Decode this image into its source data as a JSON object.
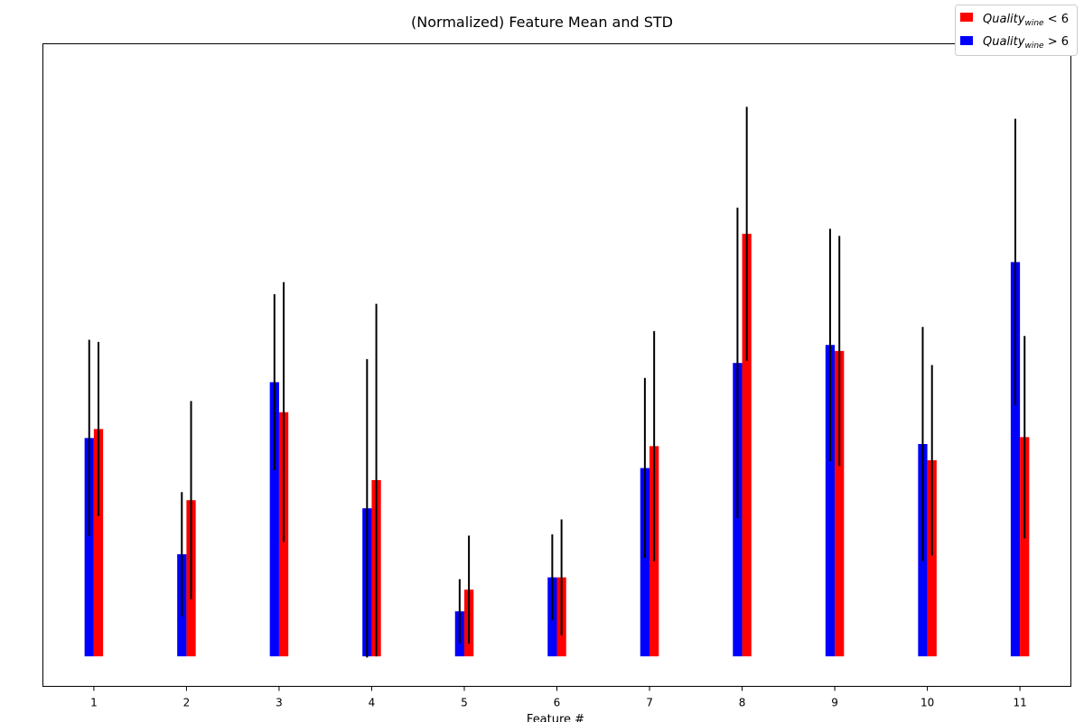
{
  "chart_data": {
    "type": "bar",
    "title": "(Normalized) Feature Mean and STD",
    "xlabel": "Feature #",
    "ylabel": "",
    "categories": [
      "1",
      "2",
      "3",
      "4",
      "5",
      "6",
      "7",
      "8",
      "9",
      "10",
      "11"
    ],
    "ylim": [
      -0.01,
      0.204
    ],
    "grid": false,
    "legend_placement": "top-right",
    "series": [
      {
        "name_prefix": "Quality",
        "name_sub": "wine",
        "name_suffix": " < 6",
        "color": "#ff0000",
        "values": [
          0.0757,
          0.052,
          0.0813,
          0.0587,
          0.0222,
          0.0263,
          0.07,
          0.1407,
          0.1017,
          0.0653,
          0.073
        ],
        "errors": [
          0.029,
          0.033,
          0.0433,
          0.0587,
          0.018,
          0.0193,
          0.0383,
          0.0423,
          0.0383,
          0.0317,
          0.0337
        ]
      },
      {
        "name_prefix": "Quality",
        "name_sub": "wine",
        "name_suffix": " > 6",
        "color": "#0000ff",
        "values": [
          0.0727,
          0.034,
          0.0913,
          0.0493,
          0.015,
          0.0263,
          0.0627,
          0.0977,
          0.1037,
          0.0707,
          0.1313
        ],
        "errors": [
          0.0327,
          0.0207,
          0.0293,
          0.0497,
          0.0107,
          0.0143,
          0.03,
          0.0517,
          0.0387,
          0.039,
          0.0477
        ]
      }
    ]
  }
}
